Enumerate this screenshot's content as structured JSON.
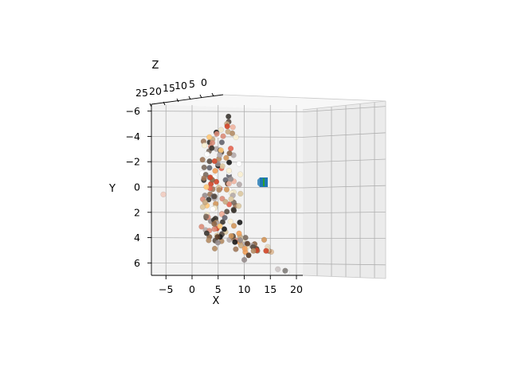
{
  "chart_data": {
    "type": "scatter",
    "projection": "3d",
    "title": "",
    "xlabel": "X",
    "ylabel": "Y",
    "zlabel": "Z",
    "x_ticks": [
      "−5",
      "0",
      "5",
      "10",
      "15",
      "20"
    ],
    "y_ticks": [
      "−6",
      "−4",
      "−2",
      "0",
      "2",
      "4",
      "6"
    ],
    "z_ticks": [
      "25",
      "20",
      "15",
      "10",
      "5",
      "0"
    ],
    "xlim": [
      -8,
      20
    ],
    "ylim": [
      -6.5,
      7
    ],
    "zlim": [
      0,
      25
    ],
    "grid": true,
    "pane_color": "#f2f2f2",
    "grid_color": "#b0b0b0",
    "point_colors": [
      "#1a1a1a",
      "#3a3530",
      "#5a4e44",
      "#7a6a5e",
      "#8c6444",
      "#a0785a",
      "#b48c64",
      "#c8aa82",
      "#dcc8a0",
      "#f0e6c8",
      "#faf0d2",
      "#ffffff",
      "#b4aaaa",
      "#968c8c",
      "#64646e",
      "#d24628",
      "#e66450",
      "#dc8c78",
      "#f0b4a0",
      "#d2965a",
      "#f0a05a",
      "#ffc878",
      "#5a3c28"
    ],
    "camera_marker": {
      "label": "camera",
      "color": "#1f77b4",
      "accent": "#2ca02c"
    },
    "points": [
      [
        5.2,
        -0.8,
        8
      ],
      [
        6.1,
        0.4,
        12
      ],
      [
        4.8,
        1.6,
        5
      ],
      [
        7.3,
        -1.9,
        9
      ],
      [
        5.9,
        2.3,
        14
      ],
      [
        6.7,
        -3.1,
        7
      ],
      [
        4.3,
        0.9,
        11
      ],
      [
        8.1,
        1.2,
        6
      ],
      [
        5.5,
        -2.4,
        13
      ],
      [
        6.4,
        3.0,
        10
      ],
      [
        7.8,
        -0.3,
        15
      ],
      [
        4.9,
        2.8,
        4
      ],
      [
        6.0,
        -1.2,
        16
      ],
      [
        7.1,
        0.7,
        8
      ],
      [
        5.3,
        3.6,
        12
      ],
      [
        8.6,
        -2.2,
        9
      ],
      [
        4.6,
        -0.1,
        7
      ],
      [
        6.8,
        2.1,
        14
      ],
      [
        5.7,
        -3.8,
        11
      ],
      [
        7.5,
        1.8,
        5
      ],
      [
        9.2,
        0.2,
        10
      ],
      [
        5.0,
        1.1,
        13
      ],
      [
        6.3,
        -2.7,
        6
      ],
      [
        7.9,
        3.3,
        9
      ],
      [
        4.4,
        -1.5,
        15
      ],
      [
        8.4,
        -0.9,
        12
      ],
      [
        6.5,
        0.0,
        8
      ],
      [
        5.8,
        2.6,
        7
      ],
      [
        7.0,
        -3.4,
        14
      ],
      [
        9.6,
        1.5,
        10
      ],
      [
        6.2,
        3.8,
        5
      ],
      [
        4.7,
        -2.9,
        11
      ],
      [
        8.0,
        2.4,
        13
      ],
      [
        5.1,
        -0.5,
        9
      ],
      [
        7.4,
        1.0,
        6
      ],
      [
        6.9,
        -1.7,
        15
      ],
      [
        5.6,
        3.1,
        8
      ],
      [
        8.8,
        -0.6,
        12
      ],
      [
        4.5,
        1.9,
        10
      ],
      [
        7.7,
        -2.5,
        7
      ],
      [
        6.6,
        0.5,
        14
      ],
      [
        5.4,
        -3.5,
        11
      ],
      [
        9.0,
        2.9,
        6
      ],
      [
        6.1,
        -0.2,
        13
      ],
      [
        7.2,
        3.5,
        9
      ],
      [
        4.9,
        -1.0,
        16
      ],
      [
        8.3,
        0.8,
        5
      ],
      [
        5.9,
        -4.1,
        12
      ],
      [
        7.6,
        2.2,
        8
      ],
      [
        6.3,
        -0.7,
        10
      ],
      [
        10.1,
        1.3,
        7
      ],
      [
        5.2,
        2.0,
        15
      ],
      [
        6.8,
        -2.0,
        11
      ],
      [
        8.5,
        3.7,
        6
      ],
      [
        4.6,
        0.3,
        13
      ],
      [
        7.1,
        -3.0,
        9
      ],
      [
        9.4,
        -1.3,
        14
      ],
      [
        5.7,
        1.4,
        8
      ],
      [
        6.4,
        3.9,
        12
      ],
      [
        7.9,
        -0.4,
        5
      ],
      [
        5.0,
        -1.8,
        10
      ],
      [
        8.2,
        1.7,
        15
      ],
      [
        6.0,
        2.7,
        7
      ],
      [
        7.3,
        -2.6,
        13
      ],
      [
        4.8,
        3.2,
        9
      ],
      [
        9.8,
        0.1,
        11
      ],
      [
        6.7,
        -3.7,
        6
      ],
      [
        5.5,
        0.6,
        14
      ],
      [
        8.7,
        2.5,
        8
      ],
      [
        6.2,
        -1.1,
        12
      ],
      [
        7.4,
        3.4,
        10
      ],
      [
        4.3,
        -0.9,
        5
      ],
      [
        10.5,
        1.1,
        13
      ],
      [
        5.8,
        -2.3,
        9
      ],
      [
        7.0,
        0.9,
        15
      ],
      [
        6.5,
        2.9,
        7
      ],
      [
        8.9,
        -1.6,
        11
      ],
      [
        5.3,
        1.5,
        6
      ],
      [
        7.7,
        -3.3,
        14
      ],
      [
        6.1,
        3.6,
        8
      ],
      [
        9.1,
        -0.1,
        12
      ],
      [
        4.7,
        2.1,
        10
      ],
      [
        8.0,
        -2.8,
        5
      ],
      [
        5.6,
        0.2,
        13
      ],
      [
        7.2,
        1.9,
        9
      ],
      [
        6.9,
        -4.4,
        11
      ],
      [
        10.3,
        2.6,
        7
      ],
      [
        5.1,
        -1.4,
        15
      ],
      [
        7.5,
        3.1,
        8
      ],
      [
        6.3,
        0.4,
        12
      ],
      [
        8.4,
        -0.8,
        6
      ],
      [
        4.9,
        3.0,
        14
      ],
      [
        6.6,
        -2.1,
        10
      ],
      [
        9.5,
        1.6,
        9
      ],
      [
        5.4,
        -3.2,
        13
      ],
      [
        7.8,
        0.0,
        7
      ],
      [
        6.0,
        2.3,
        11
      ],
      [
        8.1,
        -1.9,
        15
      ],
      [
        5.7,
        3.8,
        5
      ],
      [
        7.1,
        -0.3,
        12
      ],
      [
        11.2,
        3.9,
        8
      ],
      [
        10.8,
        4.1,
        10
      ],
      [
        11.6,
        4.3,
        6
      ],
      [
        9.9,
        3.7,
        12
      ],
      [
        12.0,
        4.5,
        9
      ],
      [
        10.4,
        4.0,
        7
      ],
      [
        11.0,
        3.6,
        11
      ],
      [
        12.5,
        4.6,
        5
      ],
      [
        9.3,
        3.8,
        13
      ],
      [
        10.7,
        4.4,
        8
      ],
      [
        11.8,
        4.2,
        10
      ],
      [
        10.0,
        3.5,
        6
      ],
      [
        12.2,
        4.8,
        12
      ],
      [
        9.7,
        4.1,
        9
      ],
      [
        11.4,
        3.8,
        7
      ],
      [
        10.2,
        4.6,
        11
      ],
      [
        12.8,
        4.4,
        8
      ],
      [
        9.5,
        3.6,
        10
      ],
      [
        11.1,
        4.7,
        6
      ],
      [
        10.6,
        3.9,
        12
      ],
      [
        12.6,
        4.9,
        5
      ],
      [
        13.2,
        4.5,
        9
      ],
      [
        13.5,
        4.8,
        7
      ],
      [
        14.0,
        4.6,
        10
      ],
      [
        15.5,
        4.8,
        6
      ],
      [
        16.5,
        4.9,
        8
      ],
      [
        14.5,
        4.7,
        12
      ],
      [
        15.0,
        4.9,
        5
      ],
      [
        13.0,
        4.7,
        10
      ],
      [
        12.0,
        5.2,
        7
      ],
      [
        14.8,
        4.0,
        6
      ],
      [
        15.8,
        4.5,
        8
      ],
      [
        13.8,
        4.2,
        11
      ],
      [
        16.2,
        4.8,
        9
      ],
      [
        18.5,
        6.5,
        4
      ],
      [
        19.0,
        6.6,
        5
      ],
      [
        17.6,
        6.3,
        7
      ],
      [
        -7.2,
        4.6,
        20
      ],
      [
        -5.0,
        0.5,
        3
      ],
      [
        11.5,
        5.5,
        9
      ],
      [
        8.2,
        -4.6,
        8
      ],
      [
        7.6,
        -4.3,
        10
      ],
      [
        8.8,
        -4.9,
        6
      ],
      [
        9.2,
        -4.5,
        9
      ],
      [
        8.5,
        -5.3,
        11
      ],
      [
        7.9,
        -5.0,
        7
      ],
      [
        9.0,
        -5.5,
        12
      ],
      [
        8.3,
        -5.8,
        8
      ],
      [
        7.2,
        -4.8,
        10
      ],
      [
        9.4,
        -4.1,
        6
      ],
      [
        5.5,
        -3.9,
        13
      ],
      [
        4.8,
        -4.2,
        9
      ],
      [
        4.2,
        -3.6,
        11
      ],
      [
        5.9,
        -4.4,
        7
      ],
      [
        4.5,
        -4.0,
        14
      ],
      [
        6.3,
        -4.6,
        10
      ],
      [
        5.1,
        -3.3,
        8
      ],
      [
        4.0,
        -2.5,
        12
      ],
      [
        3.8,
        -1.8,
        9
      ],
      [
        4.1,
        -1.0,
        11
      ],
      [
        3.9,
        -0.2,
        7
      ],
      [
        4.2,
        0.6,
        13
      ],
      [
        3.7,
        1.3,
        10
      ],
      [
        4.0,
        2.1,
        8
      ],
      [
        3.8,
        2.8,
        12
      ],
      [
        4.3,
        3.4,
        9
      ],
      [
        5.0,
        3.9,
        11
      ],
      [
        6.1,
        4.2,
        7
      ],
      [
        7.3,
        4.0,
        10
      ],
      [
        6.5,
        4.5,
        13
      ],
      [
        8.8,
        0.5,
        6
      ],
      [
        9.5,
        -0.7,
        9
      ],
      [
        10.2,
        -0.4,
        7
      ],
      [
        9.8,
        0.9,
        11
      ],
      [
        10.6,
        0.3,
        8
      ],
      [
        9.1,
        -1.5,
        12
      ],
      [
        10.0,
        -2.0,
        6
      ],
      [
        9.6,
        -2.8,
        10
      ],
      [
        8.9,
        -3.3,
        9
      ],
      [
        10.4,
        -1.2,
        7
      ]
    ]
  }
}
